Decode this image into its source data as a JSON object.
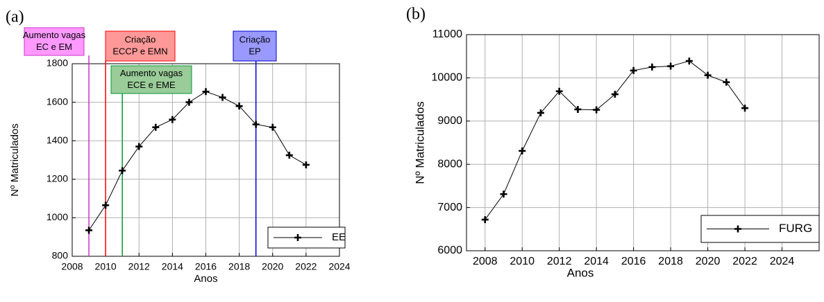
{
  "chart_data": [
    {
      "type": "line",
      "panel_label": "(a)",
      "x": [
        2009,
        2010,
        2011,
        2012,
        2013,
        2014,
        2015,
        2016,
        2017,
        2018,
        2019,
        2020,
        2021,
        2022
      ],
      "series": [
        {
          "name": "EE",
          "color": "#000000",
          "values": [
            935,
            1065,
            1245,
            1370,
            1470,
            1510,
            1600,
            1655,
            1625,
            1580,
            1485,
            1470,
            1325,
            1275
          ]
        }
      ],
      "xlabel": "Anos",
      "ylabel": "Nº Matriculados",
      "xlim": [
        2008,
        2024
      ],
      "ylim": [
        800,
        1800
      ],
      "xticks": [
        2008,
        2010,
        2012,
        2014,
        2016,
        2018,
        2020,
        2022,
        2024
      ],
      "yticks": [
        800,
        1000,
        1200,
        1400,
        1600,
        1800
      ],
      "grid": true,
      "legend": "lower right",
      "annotations": [
        {
          "x": 2009,
          "color": "#cc33cc",
          "box_color": "#ff99ff",
          "text": [
            "Aumento vagas",
            "EC e EM"
          ]
        },
        {
          "x": 2010,
          "color": "#ff0000",
          "box_color": "#ff9999",
          "text": [
            "Criação",
            "ECCP e EMN"
          ]
        },
        {
          "x": 2011,
          "color": "#009933",
          "box_color": "#99cc99",
          "text": [
            "Aumento vagas",
            "ECE e EME"
          ]
        },
        {
          "x": 2019,
          "color": "#0000cc",
          "box_color": "#9999ff",
          "text": [
            "Criação",
            "EP"
          ]
        }
      ]
    },
    {
      "type": "line",
      "panel_label": "(b)",
      "x": [
        2008,
        2009,
        2010,
        2011,
        2012,
        2013,
        2014,
        2015,
        2016,
        2017,
        2018,
        2019,
        2020,
        2021,
        2022
      ],
      "series": [
        {
          "name": "FURG",
          "color": "#000000",
          "values": [
            6720,
            7310,
            8310,
            9190,
            9690,
            9270,
            9260,
            9620,
            10170,
            10250,
            10270,
            10390,
            10060,
            9900,
            9300
          ]
        }
      ],
      "xlabel": "Anos",
      "ylabel": "Nº Matriculados",
      "xlim": [
        2007,
        2026
      ],
      "ylim": [
        6000,
        11000
      ],
      "xticks": [
        2008,
        2010,
        2012,
        2014,
        2016,
        2018,
        2020,
        2022,
        2024
      ],
      "yticks": [
        6000,
        7000,
        8000,
        9000,
        10000,
        11000
      ],
      "grid": true,
      "legend": "lower right"
    }
  ]
}
